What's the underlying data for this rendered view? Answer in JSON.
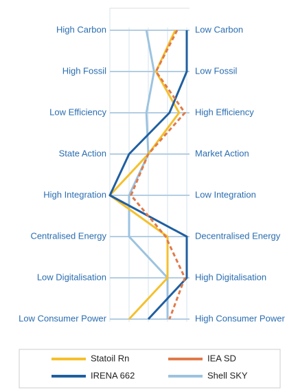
{
  "chart_data": {
    "type": "parallel",
    "categories_left": [
      "High Carbon",
      "High Fossil",
      "Low Efficiency",
      "State Action",
      "High Integration",
      "Centralised Energy",
      "Low Digitalisation",
      "Low Consumer Power"
    ],
    "categories_right": [
      "Low Carbon",
      "Low Fossil",
      "High Efficiency",
      "Market Action",
      "Low Integration",
      "Decentralised Energy",
      "High Digitalisation",
      "High Consumer Power"
    ],
    "xlim": [
      0,
      4
    ],
    "xticks": [
      0,
      1,
      2,
      3,
      4
    ],
    "grid": true,
    "series": [
      {
        "name": "Statoil Rn",
        "color": "#f5c02c",
        "dashed": false,
        "values": [
          3.4,
          2.4,
          3.6,
          2,
          0,
          3,
          3,
          1
        ]
      },
      {
        "name": "IEA SD",
        "color": "#e07a4a",
        "dashed": true,
        "values": [
          3.5,
          2.4,
          3.9,
          2,
          1.1,
          2.9,
          3.9,
          3.1
        ]
      },
      {
        "name": "IRENA 662",
        "color": "#1f5fa0",
        "dashed": false,
        "values": [
          4,
          4,
          3.1,
          1,
          0,
          4,
          4,
          2
        ]
      },
      {
        "name": "Shell SKY",
        "color": "#9cc3e0",
        "dashed": false,
        "values": [
          1.9,
          2.3,
          1.9,
          2,
          1,
          1,
          3,
          3
        ]
      }
    ]
  }
}
